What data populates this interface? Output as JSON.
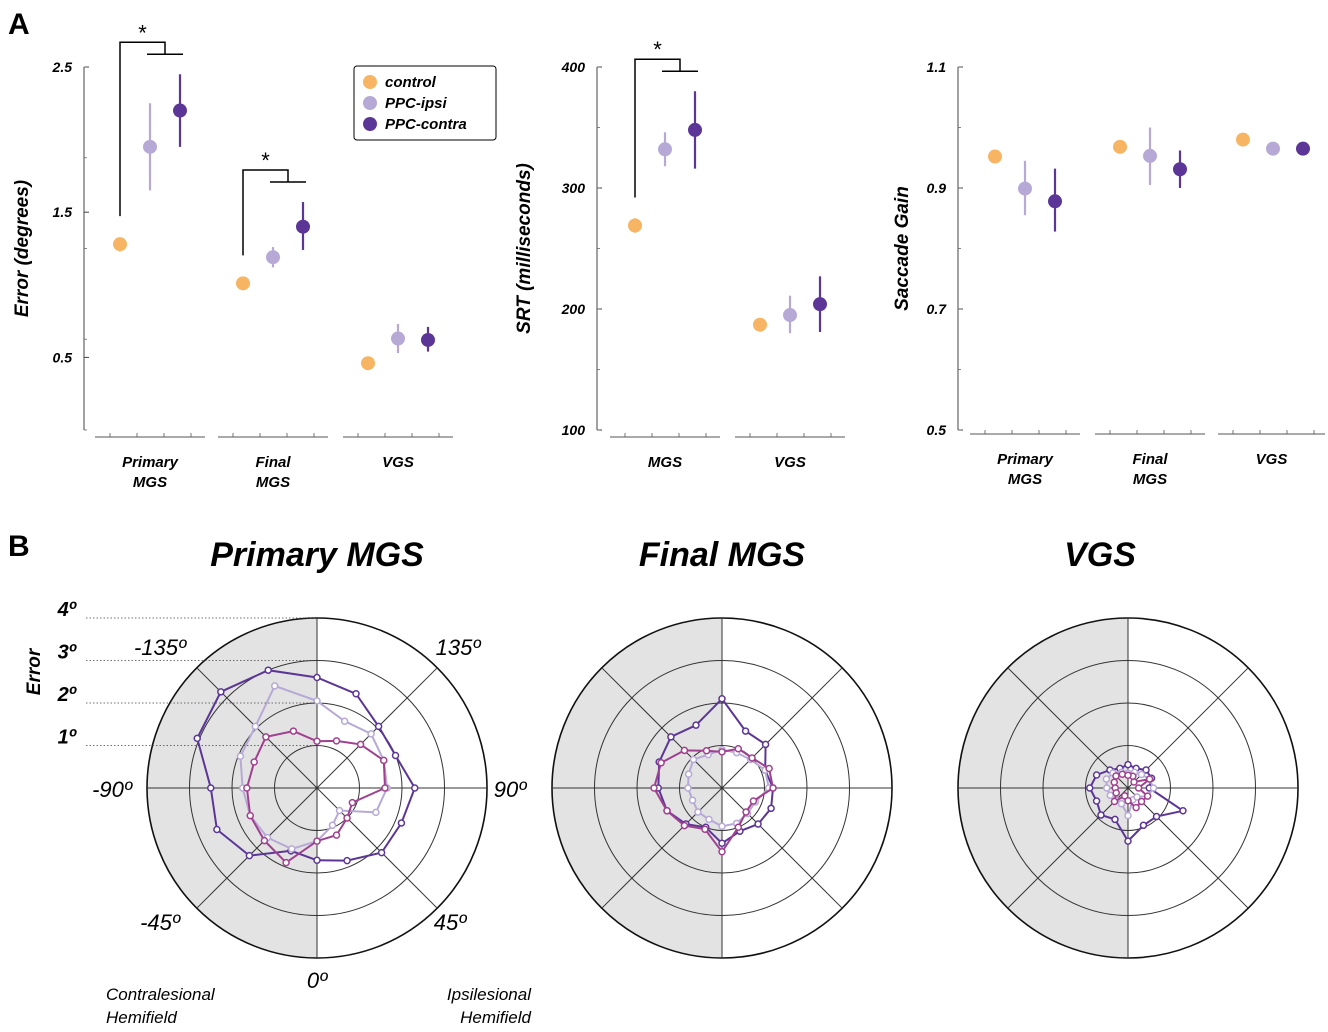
{
  "panels": {
    "A": "A",
    "B": "B"
  },
  "colors": {
    "control": "#F7B563",
    "ipsi": "#B7A9D6",
    "contra": "#5C3696",
    "magenta": "#A0418F",
    "shade": "#E3E3E3"
  },
  "legend": [
    {
      "key": "control",
      "label": "control"
    },
    {
      "key": "ipsi",
      "label": "PPC-ipsi"
    },
    {
      "key": "contra",
      "label": "PPC-contra"
    }
  ],
  "chart_data": [
    {
      "type": "scatter",
      "ylabel": "Error (degrees)",
      "ylim": [
        0,
        2.5
      ],
      "yticks": [
        "0.5",
        "1.5",
        "2.5"
      ],
      "groups": [
        {
          "label": [
            "Primary",
            "MGS"
          ],
          "points": [
            {
              "series": "control",
              "y": 1.28,
              "lo": 1.23,
              "hi": 1.32
            },
            {
              "series": "ipsi",
              "y": 1.95,
              "lo": 1.65,
              "hi": 2.25
            },
            {
              "series": "contra",
              "y": 2.2,
              "lo": 1.95,
              "hi": 2.45
            }
          ]
        },
        {
          "label": [
            "Final",
            "MGS"
          ],
          "points": [
            {
              "series": "control",
              "y": 1.01,
              "lo": 0.98,
              "hi": 1.05
            },
            {
              "series": "ipsi",
              "y": 1.19,
              "lo": 1.12,
              "hi": 1.26
            },
            {
              "series": "contra",
              "y": 1.4,
              "lo": 1.24,
              "hi": 1.57
            }
          ]
        },
        {
          "label": [
            "VGS"
          ],
          "points": [
            {
              "series": "control",
              "y": 0.46,
              "lo": 0.44,
              "hi": 0.48
            },
            {
              "series": "ipsi",
              "y": 0.63,
              "lo": 0.53,
              "hi": 0.73
            },
            {
              "series": "contra",
              "y": 0.62,
              "lo": 0.54,
              "hi": 0.71
            }
          ]
        }
      ],
      "significance": [
        {
          "group": 0,
          "label": "*"
        },
        {
          "group": 1,
          "label": "*"
        }
      ]
    },
    {
      "type": "scatter",
      "ylabel": "SRT (milliseconds)",
      "ylim": [
        100,
        400
      ],
      "yticks": [
        "100",
        "200",
        "300",
        "400"
      ],
      "groups": [
        {
          "label": [
            "MGS"
          ],
          "points": [
            {
              "series": "control",
              "y": 269,
              "lo": 263,
              "hi": 275
            },
            {
              "series": "ipsi",
              "y": 332,
              "lo": 318,
              "hi": 346
            },
            {
              "series": "contra",
              "y": 348,
              "lo": 316,
              "hi": 380
            }
          ]
        },
        {
          "label": [
            "VGS"
          ],
          "points": [
            {
              "series": "control",
              "y": 187,
              "lo": 183,
              "hi": 191
            },
            {
              "series": "ipsi",
              "y": 195,
              "lo": 180,
              "hi": 211
            },
            {
              "series": "contra",
              "y": 204,
              "lo": 181,
              "hi": 227
            }
          ]
        }
      ],
      "significance": [
        {
          "group": 0,
          "label": "*"
        }
      ]
    },
    {
      "type": "scatter",
      "ylabel": "Saccade Gain",
      "ylim": [
        0.5,
        1.1
      ],
      "yticks": [
        "0.5",
        "0.7",
        "0.9",
        "1.1"
      ],
      "groups": [
        {
          "label": [
            "Primary",
            "MGS"
          ],
          "points": [
            {
              "series": "control",
              "y": 0.952,
              "lo": 0.945,
              "hi": 0.959
            },
            {
              "series": "ipsi",
              "y": 0.899,
              "lo": 0.855,
              "hi": 0.945
            },
            {
              "series": "contra",
              "y": 0.878,
              "lo": 0.828,
              "hi": 0.932
            }
          ]
        },
        {
          "label": [
            "Final",
            "MGS"
          ],
          "points": [
            {
              "series": "control",
              "y": 0.968,
              "lo": 0.962,
              "hi": 0.974
            },
            {
              "series": "ipsi",
              "y": 0.953,
              "lo": 0.905,
              "hi": 1.0
            },
            {
              "series": "contra",
              "y": 0.931,
              "lo": 0.9,
              "hi": 0.962
            }
          ]
        },
        {
          "label": [
            "VGS"
          ],
          "points": [
            {
              "series": "control",
              "y": 0.98,
              "lo": 0.975,
              "hi": 0.985
            },
            {
              "series": "ipsi",
              "y": 0.965,
              "lo": 0.96,
              "hi": 0.97
            },
            {
              "series": "contra",
              "y": 0.965,
              "lo": 0.96,
              "hi": 0.97
            }
          ]
        }
      ],
      "significance": []
    }
  ],
  "polar": {
    "ylabel": "Error",
    "max": 4,
    "ring_labels": [
      "1º",
      "2º",
      "3º",
      "4º"
    ],
    "angle_labels": {
      "a135n": "-135º",
      "a135p": "135º",
      "a90n": "-90º",
      "a90p": "90º",
      "a45n": "-45º",
      "a45p": "45º",
      "a0": "0º"
    },
    "hemifield_labels": {
      "contra": [
        "Contralesional",
        "Hemifield"
      ],
      "ipsi": [
        "Ipsilesional",
        "Hemifield"
      ]
    },
    "angles": [
      -157.5,
      -135,
      -112.5,
      -90,
      -67.5,
      -45,
      -22.5,
      0,
      22.5,
      45,
      67.5,
      90,
      112.5,
      135,
      157.5,
      180
    ],
    "plots": [
      {
        "title": "Primary MGS",
        "series": [
          {
            "key": "contra",
            "values": [
              3.0,
              3.2,
              3.05,
              2.5,
              2.55,
              2.25,
              1.6,
              1.7,
              1.85,
              2.15,
              2.15,
              2.3,
              2.0,
              2.05,
              2.4,
              2.6
            ]
          },
          {
            "key": "ipsi",
            "values": [
              2.6,
              2.05,
              1.95,
              1.75,
              1.7,
              1.65,
              1.55,
              1.25,
              0.95,
              0.75,
              1.5,
              1.65,
              1.7,
              1.8,
              1.7,
              2.05
            ]
          },
          {
            "key": "magenta",
            "values": [
              1.45,
              1.7,
              1.6,
              1.65,
              1.7,
              1.75,
              1.9,
              1.25,
              1.2,
              1.0,
              0.9,
              1.6,
              1.7,
              1.45,
              1.2,
              1.1
            ]
          }
        ]
      },
      {
        "title": "Final MGS",
        "series": [
          {
            "key": "contra",
            "values": [
              1.6,
              1.7,
              1.6,
              1.5,
              1.4,
              1.2,
              1.0,
              1.3,
              1.1,
              1.2,
              1.25,
              1.2,
              1.1,
              1.45,
              1.45,
              2.1
            ]
          },
          {
            "key": "ipsi",
            "values": [
              0.85,
              0.95,
              0.85,
              0.8,
              0.75,
              0.8,
              0.8,
              0.9,
              0.9,
              0.85,
              0.85,
              1.1,
              1.1,
              0.95,
              0.9,
              0.9
            ]
          },
          {
            "key": "magenta",
            "values": [
              0.95,
              1.25,
              1.55,
              1.6,
              1.4,
              1.25,
              1.05,
              1.5,
              1.0,
              0.8,
              0.8,
              1.2,
              1.2,
              1.0,
              1.0,
              0.85
            ]
          }
        ]
      },
      {
        "title": "VGS",
        "series": [
          {
            "key": "contra",
            "values": [
              0.5,
              0.6,
              0.8,
              0.9,
              0.8,
              0.9,
              0.8,
              1.25,
              0.95,
              0.95,
              1.4,
              0.5,
              0.6,
              0.6,
              0.5,
              0.55
            ]
          },
          {
            "key": "ipsi",
            "values": [
              0.4,
              0.5,
              0.55,
              0.5,
              0.45,
              0.4,
              0.4,
              0.65,
              0.3,
              0.3,
              0.5,
              0.6,
              0.55,
              0.45,
              0.4,
              0.35
            ]
          },
          {
            "key": "magenta",
            "values": [
              0.35,
              0.4,
              0.35,
              0.3,
              0.3,
              0.45,
              0.2,
              0.3,
              0.5,
              0.45,
              0.5,
              0.25,
              0.55,
              0.2,
              0.3,
              0.3
            ]
          }
        ]
      }
    ]
  }
}
